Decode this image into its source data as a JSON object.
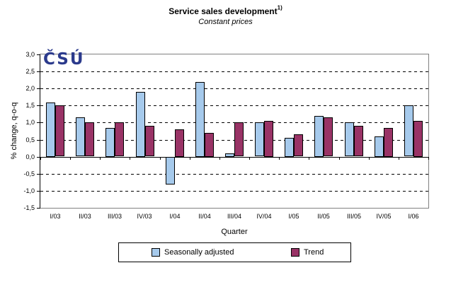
{
  "header": {
    "title": "Service sales development",
    "superscript": "1)",
    "subtitle": "Constant prices"
  },
  "logo": {
    "text": "ČSÚ",
    "color": "#2B3A8C"
  },
  "chart_data": {
    "type": "bar",
    "title": "Service sales development 1)",
    "subtitle": "Constant prices",
    "xlabel": "Quarter",
    "ylabel": "% change, q-o-q",
    "ylim": [
      -1.5,
      3.0
    ],
    "ytick_step": 0.5,
    "ytick_labels": [
      "3,0",
      "2,5",
      "2,0",
      "1,5",
      "1,0",
      "0,5",
      "0,0",
      "-0,5",
      "-1,0",
      "-1,5"
    ],
    "grid": "horizontal-dashed",
    "legend_position": "bottom",
    "categories": [
      "I/03",
      "II/03",
      "III/03",
      "IV/03",
      "I/04",
      "II/04",
      "III/04",
      "IV/04",
      "I/05",
      "II/05",
      "III/05",
      "IV/05",
      "I/06"
    ],
    "series": [
      {
        "name": "Seasonally adjusted",
        "color": "#A6CAEC",
        "values": [
          1.6,
          1.15,
          0.85,
          1.9,
          -0.8,
          2.2,
          0.1,
          1.0,
          0.55,
          1.2,
          1.0,
          0.6,
          1.5
        ]
      },
      {
        "name": "Trend",
        "color": "#993366",
        "values": [
          1.5,
          1.0,
          1.0,
          0.9,
          0.8,
          0.7,
          1.0,
          1.05,
          0.65,
          1.15,
          0.9,
          0.85,
          1.05
        ]
      }
    ]
  },
  "colors": {
    "axis": "#000000",
    "frame": "#808080",
    "background": "#FFFFFF"
  }
}
